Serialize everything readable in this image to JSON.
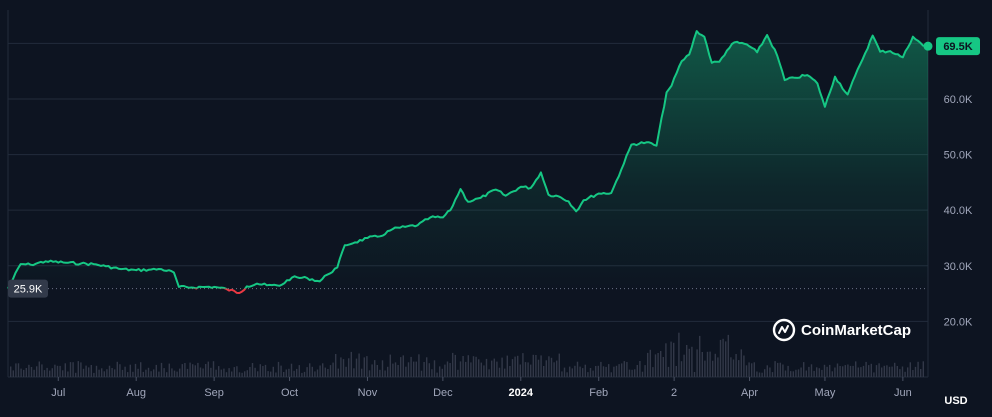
{
  "chart_data": {
    "type": "area",
    "currency_label": "USD",
    "brand": "CoinMarketCap",
    "colors": {
      "background": "#0d1421",
      "line_up": "#16c784",
      "line_down": "#ea3943",
      "grid": "#222b3b",
      "badge_last": "#16c784",
      "badge_baseline": "#323a4a",
      "volume": "#323848"
    },
    "y_ticks": [
      "20.0K",
      "30.0K",
      "40.0K",
      "50.0K",
      "60.0K"
    ],
    "y_tick_values": [
      20000,
      30000,
      40000,
      50000,
      60000
    ],
    "ylim": [
      10000,
      76000
    ],
    "grid": true,
    "x_ticks": [
      {
        "label": "Jul",
        "date": "2023-07-01",
        "bold": false
      },
      {
        "label": "Aug",
        "date": "2023-08-01",
        "bold": false
      },
      {
        "label": "Sep",
        "date": "2023-09-01",
        "bold": false
      },
      {
        "label": "Oct",
        "date": "2023-10-01",
        "bold": false
      },
      {
        "label": "Nov",
        "date": "2023-11-01",
        "bold": false
      },
      {
        "label": "Dec",
        "date": "2023-12-01",
        "bold": false
      },
      {
        "label": "2024",
        "date": "2024-01-01",
        "bold": true
      },
      {
        "label": "Feb",
        "date": "2024-02-01",
        "bold": false
      },
      {
        "label": "2",
        "date": "2024-03-02",
        "bold": false
      },
      {
        "label": "Apr",
        "date": "2024-04-01",
        "bold": false
      },
      {
        "label": "May",
        "date": "2024-05-01",
        "bold": false
      },
      {
        "label": "Jun",
        "date": "2024-06-01",
        "bold": false
      }
    ],
    "xlim": [
      "2023-06-11",
      "2024-06-11"
    ],
    "baseline": {
      "label": "25.9K",
      "value": 25900
    },
    "last_price": {
      "label": "69.5K",
      "value": 69500
    },
    "series": [
      {
        "x": [
          "2023-06-11",
          "2023-06-16",
          "2023-06-20",
          "2023-06-26",
          "2023-07-03",
          "2023-07-10",
          "2023-07-15",
          "2023-07-20",
          "2023-07-26",
          "2023-08-01",
          "2023-08-06",
          "2023-08-11",
          "2023-08-16",
          "2023-08-18",
          "2023-08-23",
          "2023-08-29",
          "2023-09-01",
          "2023-09-06",
          "2023-09-11",
          "2023-09-14",
          "2023-09-18",
          "2023-09-22",
          "2023-09-27",
          "2023-10-02",
          "2023-10-08",
          "2023-10-13",
          "2023-10-16",
          "2023-10-20",
          "2023-10-23",
          "2023-10-27",
          "2023-11-01",
          "2023-11-06",
          "2023-11-11",
          "2023-11-16",
          "2023-11-21",
          "2023-11-26",
          "2023-12-01",
          "2023-12-04",
          "2023-12-08",
          "2023-12-11",
          "2023-12-16",
          "2023-12-22",
          "2023-12-26",
          "2024-01-01",
          "2024-01-05",
          "2024-01-09",
          "2024-01-12",
          "2024-01-16",
          "2024-01-20",
          "2024-01-23",
          "2024-01-26",
          "2024-02-01",
          "2024-02-06",
          "2024-02-10",
          "2024-02-14",
          "2024-02-20",
          "2024-02-24",
          "2024-02-28",
          "2024-03-01",
          "2024-03-05",
          "2024-03-08",
          "2024-03-11",
          "2024-03-14",
          "2024-03-17",
          "2024-03-20",
          "2024-03-23",
          "2024-03-26",
          "2024-03-31",
          "2024-04-04",
          "2024-04-08",
          "2024-04-12",
          "2024-04-15",
          "2024-04-19",
          "2024-04-24",
          "2024-04-28",
          "2024-05-01",
          "2024-05-05",
          "2024-05-10",
          "2024-05-15",
          "2024-05-20",
          "2024-05-23",
          "2024-05-27",
          "2024-06-01",
          "2024-06-05",
          "2024-06-09",
          "2024-06-11"
        ],
        "y": [
          25900,
          30300,
          30200,
          30800,
          30600,
          30400,
          30300,
          29900,
          29400,
          29200,
          29300,
          29400,
          28800,
          26200,
          26100,
          26200,
          26200,
          25800,
          25100,
          26300,
          26800,
          26500,
          26400,
          27900,
          27800,
          27200,
          28400,
          29700,
          33700,
          34200,
          35000,
          35300,
          36600,
          37000,
          37300,
          38700,
          38700,
          40000,
          43800,
          41500,
          42200,
          43700,
          42600,
          44200,
          44000,
          46800,
          42800,
          42500,
          41600,
          39800,
          41800,
          43000,
          43100,
          47300,
          51800,
          52200,
          51600,
          61200,
          62400,
          66800,
          68000,
          72200,
          71200,
          66500,
          66700,
          68700,
          70200,
          69800,
          68400,
          71500,
          67800,
          63400,
          63800,
          64300,
          62800,
          58600,
          64000,
          60800,
          66200,
          71400,
          68500,
          68600,
          67500,
          71200,
          69600,
          69500
        ]
      }
    ]
  }
}
